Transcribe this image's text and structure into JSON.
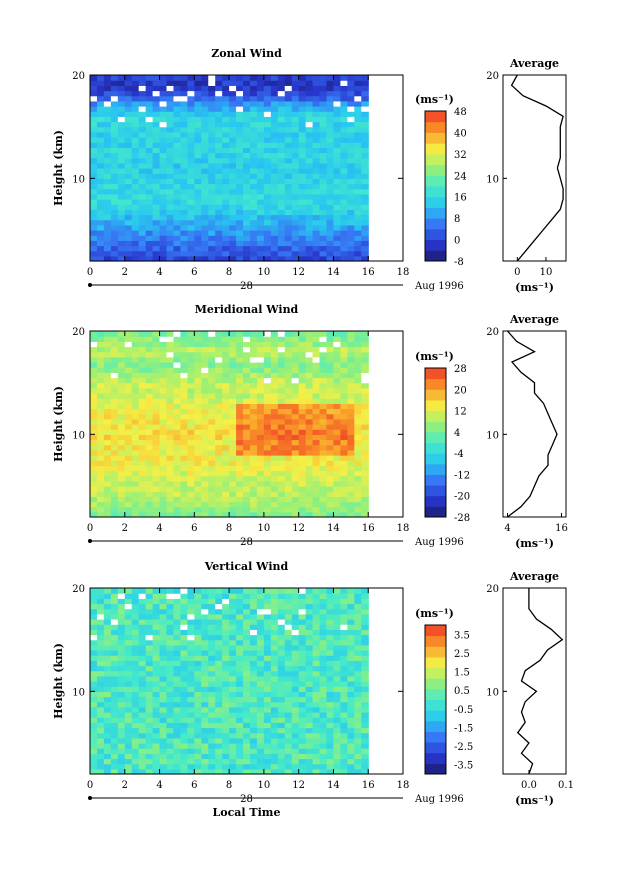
{
  "chart_data": [
    {
      "type": "heatmap",
      "title": "Zonal Wind",
      "xlabel": "",
      "ylabel": "Height (km)",
      "xlim": [
        0,
        18
      ],
      "ylim": [
        2,
        20
      ],
      "x_ticks": [
        "0",
        "2",
        "4",
        "6",
        "8",
        "10",
        "12",
        "14",
        "16",
        "18"
      ],
      "y_ticks": [
        "10",
        "20"
      ],
      "data_x_extent": [
        0,
        16
      ],
      "date_day": "28",
      "date_label": "Aug 1996",
      "colorbar": {
        "unit": "(ms⁻¹)",
        "range": [
          -8,
          48
        ],
        "ticks": [
          "-8",
          "0",
          "8",
          "16",
          "24",
          "32",
          "40",
          "48"
        ]
      },
      "profile_height": [
        2,
        3,
        4,
        5,
        6,
        7,
        8,
        9,
        10,
        11,
        12,
        13,
        14,
        15,
        16,
        17,
        18,
        19,
        20
      ],
      "profile_values": [
        0,
        3,
        6,
        9,
        12,
        15,
        16,
        16,
        15,
        14,
        15,
        15,
        15,
        15,
        16,
        10,
        2,
        -2,
        0
      ],
      "average": {
        "title": "Average",
        "xlim": [
          -5,
          17
        ],
        "x_ticks": [
          "0",
          "10"
        ],
        "xunit": "(ms⁻¹)"
      }
    },
    {
      "type": "heatmap",
      "title": "Meridional Wind",
      "xlabel": "",
      "ylabel": "Height (km)",
      "xlim": [
        0,
        18
      ],
      "ylim": [
        2,
        20
      ],
      "x_ticks": [
        "0",
        "2",
        "4",
        "6",
        "8",
        "10",
        "12",
        "14",
        "16",
        "18"
      ],
      "y_ticks": [
        "10",
        "20"
      ],
      "data_x_extent": [
        0,
        16
      ],
      "date_day": "28",
      "date_label": "Aug 1996",
      "colorbar": {
        "unit": "(ms⁻¹)",
        "range": [
          -28,
          28
        ],
        "ticks": [
          "-28",
          "-20",
          "-12",
          "-4",
          "4",
          "12",
          "20",
          "28"
        ]
      },
      "profile_height": [
        2,
        3,
        4,
        5,
        6,
        7,
        8,
        9,
        10,
        11,
        12,
        13,
        14,
        15,
        16,
        17,
        18,
        19,
        20
      ],
      "profile_values": [
        4,
        7,
        9,
        10,
        11,
        13,
        13,
        14,
        15,
        14,
        13,
        12,
        10,
        10,
        7,
        5,
        10,
        6,
        4
      ],
      "average": {
        "title": "Average",
        "xlim": [
          3,
          17
        ],
        "x_ticks": [
          "4",
          "16"
        ],
        "xunit": "(ms⁻¹)"
      }
    },
    {
      "type": "heatmap",
      "title": "Vertical Wind",
      "xlabel": "Local Time",
      "ylabel": "Height (km)",
      "xlim": [
        0,
        18
      ],
      "ylim": [
        2,
        20
      ],
      "x_ticks": [
        "0",
        "2",
        "4",
        "6",
        "8",
        "10",
        "12",
        "14",
        "16",
        "18"
      ],
      "y_ticks": [
        "10",
        "20"
      ],
      "data_x_extent": [
        0,
        16
      ],
      "date_day": "28",
      "date_label": "Aug 1996",
      "colorbar": {
        "unit": "(ms⁻¹)",
        "range": [
          -4,
          4
        ],
        "ticks": [
          "-3.5",
          "-2.5",
          "-1.5",
          "-0.5",
          "0.5",
          "1.5",
          "2.5",
          "3.5"
        ]
      },
      "profile_height": [
        2,
        3,
        4,
        5,
        6,
        7,
        8,
        9,
        10,
        11,
        12,
        13,
        14,
        15,
        16,
        17,
        18,
        19,
        20
      ],
      "profile_values": [
        0.0,
        0.01,
        -0.02,
        0.0,
        -0.03,
        -0.01,
        -0.02,
        -0.01,
        0.02,
        -0.02,
        -0.01,
        0.03,
        0.05,
        0.09,
        0.06,
        0.02,
        0.0,
        0.0,
        0.0
      ],
      "average": {
        "title": "Average",
        "xlim": [
          -0.07,
          0.1
        ],
        "x_ticks": [
          "0.0",
          "0.1"
        ],
        "xunit": "(ms⁻¹)"
      }
    }
  ]
}
